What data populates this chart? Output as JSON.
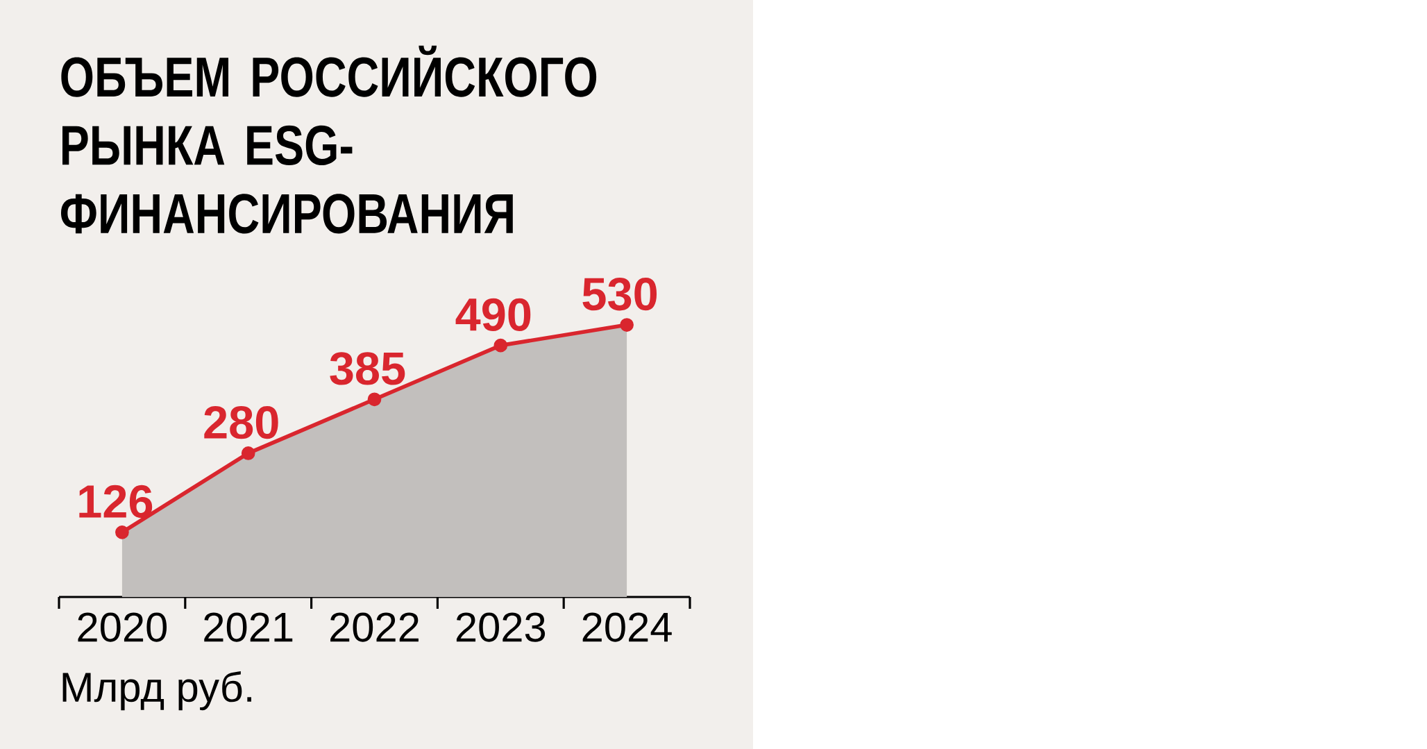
{
  "chart_data": {
    "type": "line",
    "title": "ОБЪЕМ РОССИЙСКОГО РЫНКА ESG-ФИНАНСИРОВАНИЯ",
    "annotations": [
      "Млрд руб."
    ],
    "categories": [
      "2020",
      "2021",
      "2022",
      "2023",
      "2024"
    ],
    "series": [
      {
        "color": "#d9262e",
        "values": [
          126,
          280,
          385,
          490,
          530
        ]
      }
    ],
    "marker": "circle",
    "data_labels": true
  }
}
